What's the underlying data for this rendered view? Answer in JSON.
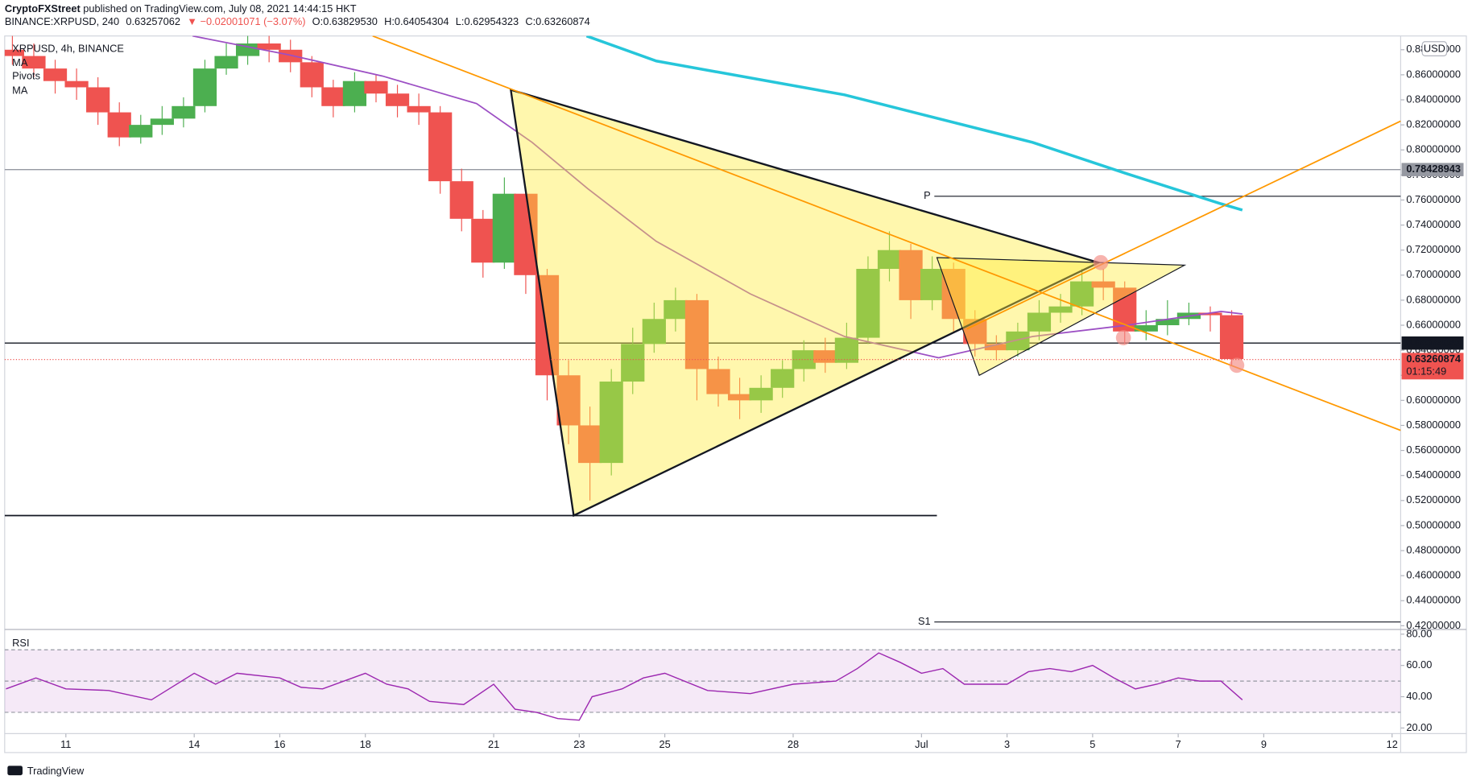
{
  "chart_data": {
    "type": "candlestick",
    "header": {
      "author": "CryptoFXStreet",
      "published": "published on TradingView.com, July 08, 2021 14:44:15 HKT",
      "symbol": "BINANCE:XRPUSD, 240",
      "price": "0.63257062",
      "change": "▼ −0.02001071 (−3.07%)",
      "open": "O:0.63829530",
      "high": "H:0.64054304",
      "low": "L:0.62954323",
      "close": "C:0.63260874"
    },
    "legend_title": "XRPUSD, 4h, BINANCE",
    "currency": "USD",
    "brand": "TradingView",
    "up_color": "#4caf50",
    "down_color": "#ef5350",
    "xlim": [
      9.57,
      42.2
    ],
    "xticks": [
      11,
      14,
      16,
      18,
      21,
      23,
      25,
      28,
      {
        "value": 31,
        "label": "Jul"
      },
      {
        "value": 33,
        "label": "3"
      },
      {
        "value": 35,
        "label": "5"
      },
      {
        "value": 37,
        "label": "7"
      },
      {
        "value": 39,
        "label": "9"
      },
      {
        "value": 42,
        "label": "12"
      }
    ],
    "ylim": [
      0.417,
      0.891
    ],
    "yticks": [
      {
        "value": 0.42,
        "label": "0.42000000"
      },
      {
        "value": 0.44,
        "label": "0.44000000"
      },
      {
        "value": 0.46,
        "label": "0.46000000"
      },
      {
        "value": 0.48,
        "label": "0.48000000"
      },
      {
        "value": 0.5,
        "label": "0.50000000"
      },
      {
        "value": 0.52,
        "label": "0.52000000"
      },
      {
        "value": 0.54,
        "label": "0.54000000"
      },
      {
        "value": 0.56,
        "label": "0.56000000"
      },
      {
        "value": 0.58,
        "label": "0.58000000"
      },
      {
        "value": 0.6,
        "label": "0.60000000"
      },
      {
        "value": 0.62,
        "label": "0.62000000"
      },
      {
        "value": 0.64,
        "label": "0.64000000"
      },
      {
        "value": 0.66,
        "label": "0.66000000"
      },
      {
        "value": 0.68,
        "label": "0.68000000"
      },
      {
        "value": 0.7,
        "label": "0.70000000"
      },
      {
        "value": 0.72,
        "label": "0.72000000"
      },
      {
        "value": 0.74,
        "label": "0.74000000"
      },
      {
        "value": 0.76,
        "label": "0.76000000"
      },
      {
        "value": 0.78,
        "label": "0.78000000"
      },
      {
        "value": 0.8,
        "label": "0.80000000"
      },
      {
        "value": 0.82,
        "label": "0.82000000"
      },
      {
        "value": 0.84,
        "label": "0.84000000"
      },
      {
        "value": 0.86,
        "label": "0.86000000"
      },
      {
        "value": 0.88,
        "label": "0.88000000"
      }
    ],
    "candles": {
      "x": [
        9.75,
        10.25,
        10.75,
        11.25,
        11.75,
        12.25,
        12.75,
        13.25,
        13.75,
        14.25,
        14.75,
        15.25,
        15.75,
        16.25,
        16.75,
        17.25,
        17.75,
        18.25,
        18.75,
        19.25,
        19.75,
        20.25,
        20.75,
        21.25,
        21.75,
        22.25,
        22.75,
        23.25,
        23.75,
        24.25,
        24.75,
        25.25,
        25.75,
        26.25,
        26.75,
        27.25,
        27.75,
        28.25,
        28.75,
        29.25,
        29.75,
        30.25,
        30.75,
        31.25,
        31.75,
        32.25,
        32.75,
        33.25,
        33.75,
        34.25,
        34.75,
        35.25,
        35.75,
        36.25,
        36.75,
        37.25,
        37.75,
        38.25
      ],
      "open": [
        0.88,
        0.875,
        0.865,
        0.855,
        0.85,
        0.83,
        0.81,
        0.82,
        0.825,
        0.835,
        0.865,
        0.875,
        0.885,
        0.88,
        0.87,
        0.85,
        0.835,
        0.855,
        0.845,
        0.835,
        0.83,
        0.775,
        0.745,
        0.71,
        0.765,
        0.7,
        0.62,
        0.58,
        0.55,
        0.615,
        0.645,
        0.665,
        0.68,
        0.625,
        0.605,
        0.6,
        0.61,
        0.625,
        0.64,
        0.63,
        0.65,
        0.705,
        0.72,
        0.68,
        0.705,
        0.665,
        0.645,
        0.64,
        0.655,
        0.67,
        0.675,
        0.695,
        0.69,
        0.655,
        0.66,
        0.665,
        0.67,
        0.668
      ],
      "high": [
        0.892,
        0.885,
        0.872,
        0.865,
        0.858,
        0.838,
        0.828,
        0.835,
        0.842,
        0.872,
        0.885,
        0.892,
        0.892,
        0.888,
        0.875,
        0.856,
        0.862,
        0.86,
        0.852,
        0.845,
        0.835,
        0.785,
        0.752,
        0.778,
        0.77,
        0.705,
        0.632,
        0.595,
        0.625,
        0.658,
        0.678,
        0.69,
        0.685,
        0.635,
        0.618,
        0.62,
        0.632,
        0.648,
        0.65,
        0.662,
        0.715,
        0.735,
        0.725,
        0.715,
        0.71,
        0.672,
        0.652,
        0.662,
        0.68,
        0.685,
        0.705,
        0.705,
        0.695,
        0.672,
        0.68,
        0.678,
        0.675,
        0.672
      ],
      "low": [
        0.868,
        0.858,
        0.845,
        0.84,
        0.82,
        0.803,
        0.805,
        0.812,
        0.818,
        0.83,
        0.86,
        0.868,
        0.87,
        0.862,
        0.842,
        0.826,
        0.83,
        0.838,
        0.826,
        0.82,
        0.765,
        0.735,
        0.698,
        0.705,
        0.685,
        0.6,
        0.565,
        0.52,
        0.54,
        0.605,
        0.638,
        0.655,
        0.6,
        0.595,
        0.585,
        0.59,
        0.602,
        0.615,
        0.622,
        0.625,
        0.645,
        0.695,
        0.665,
        0.672,
        0.655,
        0.635,
        0.632,
        0.635,
        0.648,
        0.662,
        0.668,
        0.68,
        0.645,
        0.648,
        0.652,
        0.66,
        0.655,
        0.628
      ],
      "close": [
        0.875,
        0.865,
        0.855,
        0.85,
        0.83,
        0.81,
        0.82,
        0.825,
        0.835,
        0.865,
        0.875,
        0.885,
        0.88,
        0.87,
        0.85,
        0.835,
        0.855,
        0.845,
        0.835,
        0.83,
        0.775,
        0.745,
        0.71,
        0.765,
        0.7,
        0.62,
        0.58,
        0.55,
        0.615,
        0.645,
        0.665,
        0.68,
        0.625,
        0.605,
        0.6,
        0.61,
        0.625,
        0.64,
        0.63,
        0.65,
        0.705,
        0.72,
        0.68,
        0.705,
        0.665,
        0.645,
        0.64,
        0.655,
        0.67,
        0.675,
        0.695,
        0.69,
        0.655,
        0.66,
        0.665,
        0.67,
        0.668,
        0.633
      ]
    },
    "overlays": [
      {
        "name": "MA",
        "color": "#9c4fc4",
        "x": [
          13.96,
          16.2,
          18.4,
          20.6,
          21.9,
          23.2,
          24.8,
          27.0,
          29.2,
          31.4,
          33.6,
          35.8,
          38.0,
          38.5
        ],
        "values": [
          0.891,
          0.876,
          0.859,
          0.837,
          0.806,
          0.769,
          0.727,
          0.685,
          0.651,
          0.634,
          0.651,
          0.66,
          0.671,
          0.669
        ]
      },
      {
        "name": "MA",
        "color": "#26c6da",
        "x": [
          23.17,
          24.8,
          29.2,
          33.6,
          35.8,
          38.0,
          38.5
        ],
        "values": [
          0.891,
          0.871,
          0.844,
          0.806,
          0.781,
          0.757,
          0.752
        ]
      }
    ],
    "pivots": {
      "title": "Pivots",
      "x_start": 31.3,
      "levels": [
        {
          "name": "P",
          "value": 0.763
        },
        {
          "name": "S1",
          "value": 0.423
        }
      ]
    },
    "levels": [
      {
        "value": 0.78428943,
        "color": "#9598a1"
      },
      {
        "value": 0.64574049,
        "color": "#131722"
      }
    ],
    "last_price": 0.63260874,
    "countdown": "01:15:49",
    "triangles": [
      {
        "x": [
          21.4,
          22.87,
          35.14
        ],
        "y": [
          0.848,
          0.508,
          0.71
        ],
        "fill": "#ffeb3b"
      },
      {
        "x": [
          31.36,
          32.35,
          37.15
        ],
        "y": [
          0.714,
          0.62,
          0.708
        ],
        "fill": "#ffeb3b"
      }
    ],
    "trendlines": [
      {
        "x": [
          18.17,
          42.2
        ],
        "y": [
          0.891,
          0.576
        ],
        "color": "#ff9800"
      },
      {
        "x": [
          32.06,
          42.2
        ],
        "y": [
          0.657,
          0.823
        ],
        "color": "#ff9800"
      },
      {
        "x": [
          9.57,
          31.36
        ],
        "y": [
          0.508,
          0.508
        ],
        "color": "#131722"
      }
    ],
    "highlights": {
      "x": [
        35.19,
        35.72,
        38.37
      ],
      "y": [
        0.71,
        0.65,
        0.628
      ],
      "color": "#f28b82"
    },
    "rsi": {
      "title": "RSI",
      "color": "#9c27b0",
      "band": [
        30,
        70
      ],
      "mid": 50,
      "ylim": [
        16.4,
        83
      ],
      "yticks": [
        {
          "value": 20,
          "label": "20.00"
        },
        {
          "value": 40,
          "label": "40.00"
        },
        {
          "value": 60,
          "label": "60.00"
        },
        {
          "value": 80,
          "label": "80.00"
        }
      ],
      "x": [
        9.6,
        10.3,
        11,
        12,
        13,
        14,
        14.5,
        15,
        16,
        16.5,
        17,
        18,
        18.5,
        19,
        19.5,
        20.3,
        21,
        21.5,
        22,
        22.5,
        23,
        23.3,
        24,
        24.5,
        25,
        26,
        27,
        28,
        29,
        29.5,
        30,
        30.5,
        31,
        31.5,
        32,
        33,
        33.5,
        34,
        34.5,
        35,
        35.5,
        36,
        36.5,
        37,
        37.5,
        38,
        38.5
      ],
      "values": [
        45,
        52,
        45,
        44,
        38,
        55,
        48,
        55,
        52,
        46,
        45,
        55,
        48,
        45,
        37,
        35,
        48,
        32,
        30,
        26,
        25,
        40,
        45,
        52,
        55,
        44,
        42,
        48,
        50,
        58,
        68,
        62,
        55,
        58,
        48,
        48,
        56,
        58,
        56,
        60,
        52,
        45,
        48,
        52,
        50,
        50,
        38
      ]
    }
  }
}
